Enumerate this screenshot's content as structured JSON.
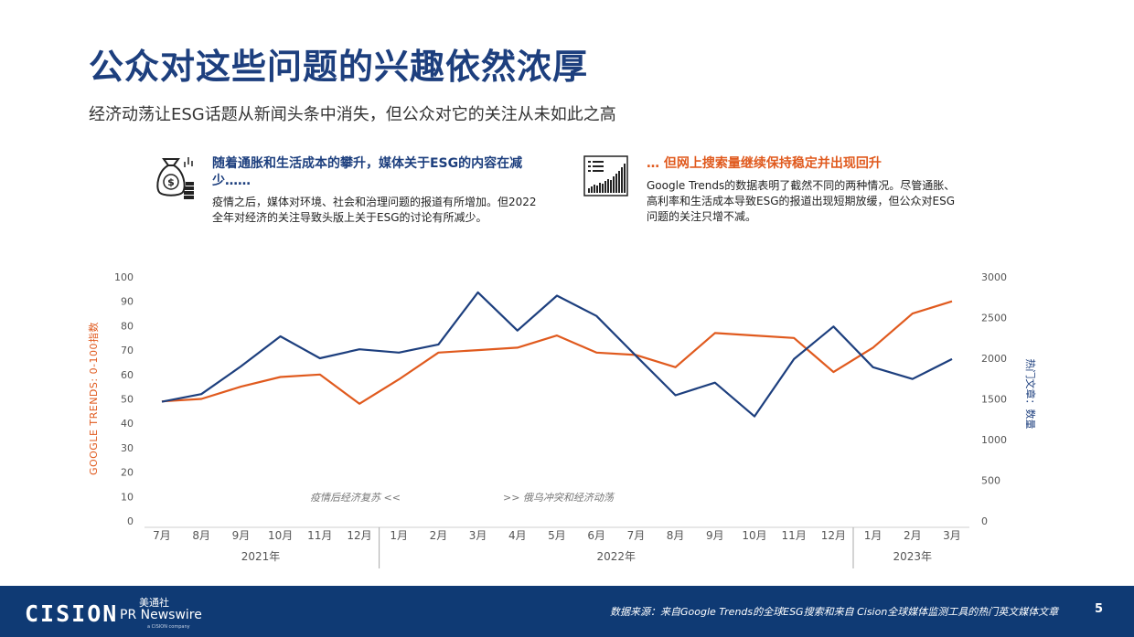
{
  "page": {
    "title": "公众对这些问题的兴趣依然浓厚",
    "subtitle": "经济动荡让ESG话题从新闻头条中消失，但公众对它的关注从未如此之高"
  },
  "panels": {
    "left": {
      "icon": "money-bag-coins-icon",
      "heading": "随着通胀和生活成本的攀升，媒体关于ESG的内容在减少……",
      "body": "疫情之后，媒体对环境、社会和治理问题的报道有所增加。但2022全年对经济的关注导致头版上关于ESG的讨论有所减少。"
    },
    "right": {
      "icon": "rising-bar-chart-icon",
      "heading": "… 但网上搜索量继续保持稳定并出现回升",
      "body": "Google Trends的数据表明了截然不同的两种情况。尽管通胀、高利率和生活成本导致ESG的报道出现短期放缓，但公众对ESG问题的关注只增不减。"
    }
  },
  "chart_data": {
    "type": "line",
    "categories": [
      "7月",
      "8月",
      "9月",
      "10月",
      "11月",
      "12月",
      "1月",
      "2月",
      "3月",
      "4月",
      "5月",
      "6月",
      "7月",
      "8月",
      "9月",
      "10月",
      "11月",
      "12月",
      "1月",
      "2月",
      "3月"
    ],
    "years": [
      {
        "label": "2021年",
        "start": 0,
        "end": 5
      },
      {
        "label": "2022年",
        "start": 6,
        "end": 17
      },
      {
        "label": "2023年",
        "start": 18,
        "end": 20
      }
    ],
    "series": [
      {
        "axis": "left",
        "color": "#e05a1e",
        "values": [
          49,
          50,
          55,
          59,
          60,
          48,
          58,
          69,
          70,
          71,
          76,
          69,
          68,
          63,
          77,
          76,
          75,
          61,
          71,
          85,
          90
        ]
      },
      {
        "axis": "right",
        "color": "#1d3f7e",
        "values": [
          1465,
          1560,
          1900,
          2270,
          2000,
          2110,
          2070,
          2170,
          2810,
          2340,
          2770,
          2520,
          2030,
          1545,
          1700,
          1285,
          1990,
          2390,
          1890,
          1745,
          1990
        ]
      }
    ],
    "ylabel_left": "GOOGLE TRENDS: 0-100指数",
    "ylabel_right": "热门文章：数量",
    "ylim_left": [
      0,
      100
    ],
    "ylim_right": [
      0,
      3000
    ],
    "yticks_left": [
      0,
      10,
      20,
      30,
      40,
      50,
      60,
      70,
      80,
      90,
      100
    ],
    "yticks_right": [
      0,
      500,
      1000,
      1500,
      2000,
      2500,
      3000
    ],
    "annotations": [
      "疫情后经济复苏  <<",
      ">>  俄乌冲突和经济动荡"
    ],
    "grid": false,
    "legend": "none"
  },
  "footer": {
    "brand": "CISION",
    "partner_cn": "美通社",
    "partner_en": "PR Newswire",
    "partner_tag": "a CISION company",
    "source": "数据来源：来自Google Trends的全球ESG搜索和来自 Cision全球媒体监测工具的热门英文媒体文章",
    "page_number": "5"
  }
}
